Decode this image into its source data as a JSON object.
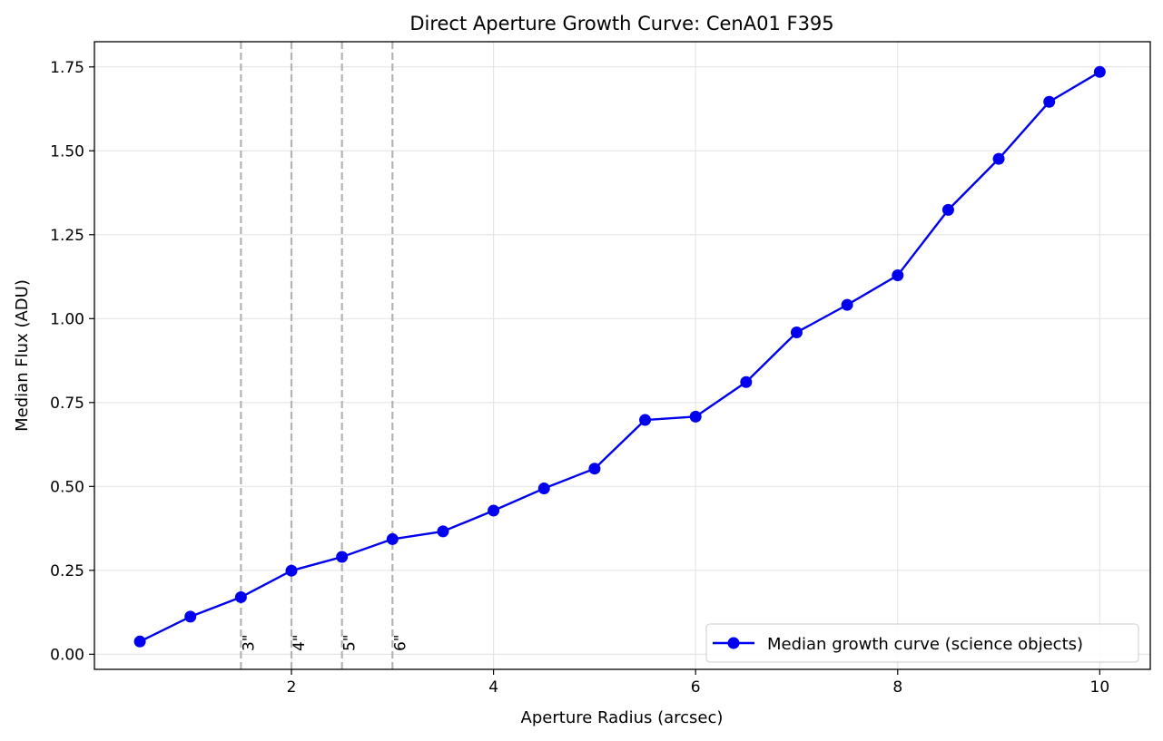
{
  "chart_data": {
    "type": "line",
    "title": "Direct Aperture Growth Curve: CenA01 F395",
    "xlabel": "Aperture Radius (arcsec)",
    "ylabel": "Median Flux (ADU)",
    "xlim": [
      0.05,
      10.5
    ],
    "ylim": [
      -0.045,
      1.825
    ],
    "xticks": [
      2,
      4,
      6,
      8,
      10
    ],
    "xtick_labels": [
      "2",
      "4",
      "6",
      "8",
      "10"
    ],
    "yticks": [
      0.0,
      0.25,
      0.5,
      0.75,
      1.0,
      1.25,
      1.5,
      1.75
    ],
    "ytick_labels": [
      "0.00",
      "0.25",
      "0.50",
      "0.75",
      "1.00",
      "1.25",
      "1.50",
      "1.75"
    ],
    "grid": true,
    "legend_position": "lower-right",
    "series": [
      {
        "name": "Median growth curve (science objects)",
        "color": "#0000ee",
        "marker": "circle",
        "x": [
          0.5,
          1.0,
          1.5,
          2.0,
          2.5,
          3.0,
          3.5,
          4.0,
          4.5,
          5.0,
          5.5,
          6.0,
          6.5,
          7.0,
          7.5,
          8.0,
          8.5,
          9.0,
          9.5,
          10.0
        ],
        "y": [
          0.038,
          0.112,
          0.17,
          0.249,
          0.29,
          0.343,
          0.366,
          0.428,
          0.494,
          0.553,
          0.698,
          0.708,
          0.811,
          0.959,
          1.041,
          1.129,
          1.324,
          1.476,
          1.646,
          1.735
        ]
      }
    ],
    "reference_lines": [
      {
        "x": 1.5,
        "label": "3\""
      },
      {
        "x": 2.0,
        "label": "4\""
      },
      {
        "x": 2.5,
        "label": "5\""
      },
      {
        "x": 3.0,
        "label": "6\""
      }
    ],
    "reference_line_color": "#b3b3b3",
    "grid_color": "#e6e6e6"
  }
}
